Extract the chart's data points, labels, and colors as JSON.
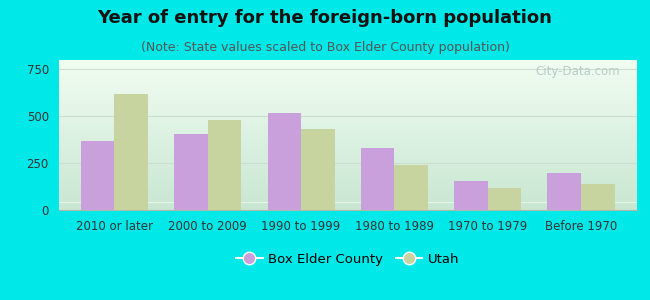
{
  "title": "Year of entry for the foreign-born population",
  "subtitle": "(Note: State values scaled to Box Elder County population)",
  "categories": [
    "2010 or later",
    "2000 to 2009",
    "1990 to 1999",
    "1980 to 1989",
    "1970 to 1979",
    "Before 1970"
  ],
  "box_elder_values": [
    370,
    405,
    515,
    330,
    155,
    200
  ],
  "utah_values": [
    620,
    480,
    430,
    240,
    120,
    140
  ],
  "box_elder_color": "#c9a0dc",
  "utah_color": "#c8d4a0",
  "background_outer": "#00e8e8",
  "ylim": [
    0,
    800
  ],
  "yticks": [
    0,
    250,
    500,
    750
  ],
  "bar_width": 0.36,
  "legend_box_elder": "Box Elder County",
  "legend_utah": "Utah",
  "title_fontsize": 13,
  "subtitle_fontsize": 9,
  "tick_fontsize": 8.5,
  "legend_fontsize": 9.5,
  "watermark_text": "City-Data.com",
  "watermark_color": "#b0c4c4"
}
